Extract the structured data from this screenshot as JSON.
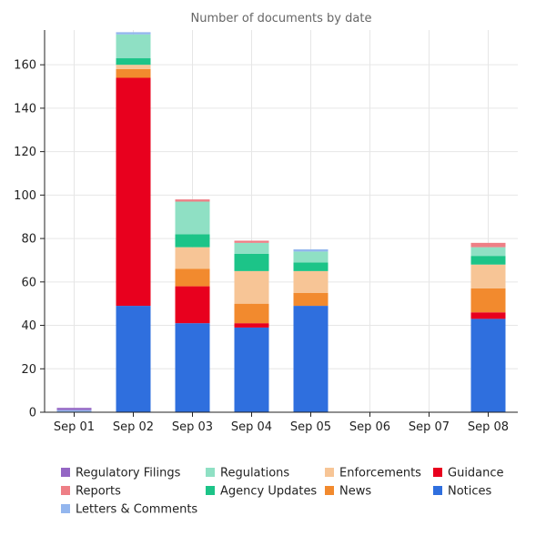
{
  "chart_data": {
    "type": "bar",
    "stacked": true,
    "title": "Number of documents by date",
    "xlabel": "",
    "ylabel": "",
    "ylim": [
      0,
      176
    ],
    "yticks": [
      0,
      20,
      40,
      60,
      80,
      100,
      120,
      140,
      160
    ],
    "grid": true,
    "legend_position": "bottom",
    "categories": [
      "Sep 01",
      "Sep 02",
      "Sep 03",
      "Sep 04",
      "Sep 05",
      "Sep 06",
      "Sep 07",
      "Sep 08"
    ],
    "series": [
      {
        "name": "Notices",
        "color": "#2f6fde",
        "values": [
          0,
          49,
          41,
          39,
          49,
          0,
          0,
          43
        ]
      },
      {
        "name": "Guidance",
        "color": "#e8001e",
        "values": [
          0,
          105,
          17,
          2,
          0,
          0,
          0,
          3
        ]
      },
      {
        "name": "News",
        "color": "#f28a2e",
        "values": [
          0,
          4,
          8,
          9,
          6,
          0,
          0,
          11
        ]
      },
      {
        "name": "Enforcements",
        "color": "#f7c596",
        "values": [
          0,
          2,
          10,
          15,
          10,
          0,
          0,
          11
        ]
      },
      {
        "name": "Agency Updates",
        "color": "#1cc488",
        "values": [
          0,
          3,
          6,
          8,
          4,
          0,
          0,
          4
        ]
      },
      {
        "name": "Regulations",
        "color": "#8fe0c4",
        "values": [
          0,
          11,
          15,
          5,
          5,
          0,
          0,
          4
        ]
      },
      {
        "name": "Reports",
        "color": "#ee7f86",
        "values": [
          0,
          0,
          1,
          1,
          0,
          0,
          0,
          2
        ]
      },
      {
        "name": "Letters & Comments",
        "color": "#93b6ee",
        "values": [
          1,
          1,
          0,
          0,
          1,
          0,
          0,
          0
        ]
      },
      {
        "name": "Regulatory Filings",
        "color": "#9466c4",
        "values": [
          1,
          0,
          0,
          0,
          0,
          0,
          0,
          0
        ]
      }
    ],
    "legend_order": [
      "Regulatory Filings",
      "Regulations",
      "Enforcements",
      "Guidance",
      "Reports",
      "Agency Updates",
      "News",
      "Notices",
      "Letters & Comments"
    ]
  }
}
